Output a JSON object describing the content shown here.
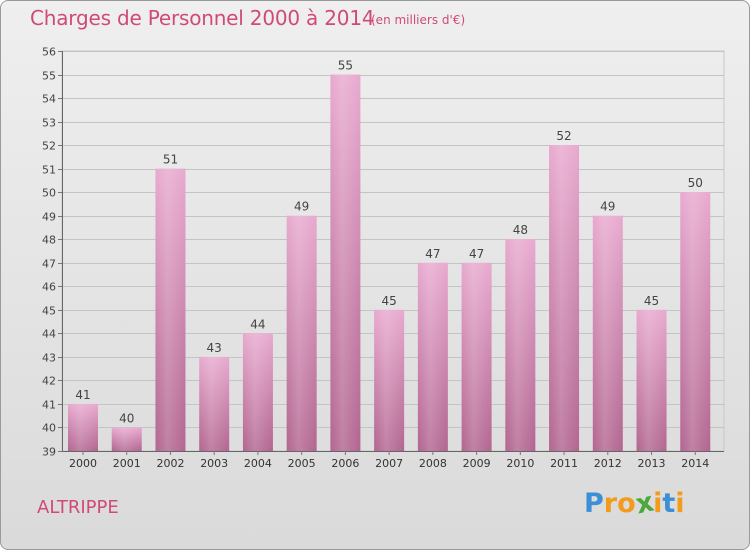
{
  "chart_data": {
    "type": "bar",
    "title": "Charges de Personnel 2000 à 2014",
    "subtitle": "(en milliers d'€)",
    "categories": [
      "2000",
      "2001",
      "2002",
      "2003",
      "2004",
      "2005",
      "2006",
      "2007",
      "2008",
      "2009",
      "2010",
      "2011",
      "2012",
      "2013",
      "2014"
    ],
    "values": [
      41,
      40,
      51,
      43,
      44,
      49,
      55,
      45,
      47,
      47,
      48,
      52,
      49,
      45,
      50
    ],
    "ylim": [
      39,
      56
    ],
    "yticks": [
      39,
      40,
      41,
      42,
      43,
      44,
      45,
      46,
      47,
      48,
      49,
      50,
      51,
      52,
      53,
      54,
      55,
      56
    ],
    "grid": true,
    "bar_color": "#cc7aa6",
    "title_color": "#d04a78"
  },
  "commune": "ALTRIPPE",
  "logo": {
    "letters": [
      "P",
      "r",
      "o",
      "x",
      "i",
      "t",
      "i"
    ],
    "colors": [
      "#3a8fd6",
      "#f39c1b",
      "#f39c1b",
      "#4aa83c",
      "#f39c1b",
      "#3a8fd6",
      "#f39c1b"
    ]
  }
}
